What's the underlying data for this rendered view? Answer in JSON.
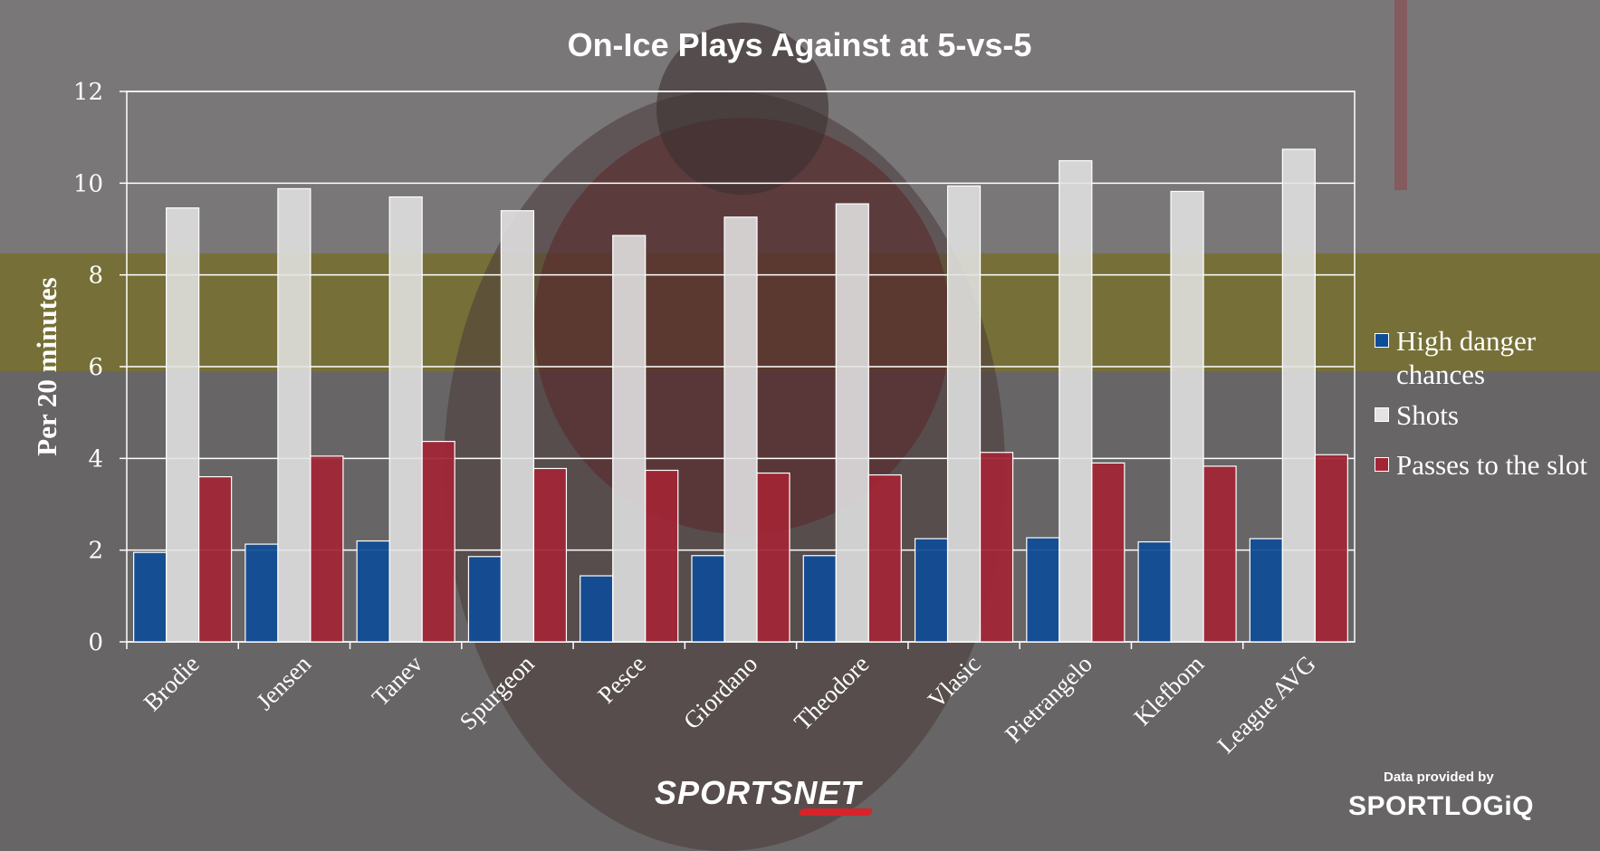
{
  "chart_data": {
    "type": "bar",
    "title": "On-Ice Plays Against at 5-vs-5",
    "ylabel": "Per 20 minutes",
    "xlabel": "",
    "ylim": [
      0,
      12
    ],
    "yticks": [
      0,
      2,
      4,
      6,
      8,
      10,
      12
    ],
    "grid": true,
    "legend_position": "right",
    "categories": [
      "Brodie",
      "Jensen",
      "Tanev",
      "Spurgeon",
      "Pesce",
      "Giordano",
      "Theodore",
      "Vlasic",
      "Pietrangelo",
      "Klefbom",
      "League AVG"
    ],
    "series": [
      {
        "name": "High danger chances",
        "color": "#0f4c97",
        "values": [
          1.95,
          2.13,
          2.2,
          1.86,
          1.44,
          1.88,
          1.88,
          2.25,
          2.27,
          2.18,
          2.25
        ]
      },
      {
        "name": "Shots",
        "color": "#e3e3e3",
        "values": [
          9.46,
          9.88,
          9.7,
          9.4,
          8.86,
          9.26,
          9.55,
          9.94,
          10.49,
          9.82,
          10.74
        ]
      },
      {
        "name": "Passes to the slot",
        "color": "#a32535",
        "values": [
          3.6,
          4.05,
          4.37,
          3.78,
          3.74,
          3.68,
          3.64,
          4.13,
          3.9,
          3.83,
          4.08
        ]
      }
    ]
  },
  "branding": {
    "sportsnet": "SPORTSNET",
    "provided_by": "Data provided by",
    "sportlogiq": "SPORTLOGiQ"
  },
  "colors": {
    "background": "#6b6b6b",
    "grid": "#ffffff"
  },
  "icons": {
    "background_photo": "hockey-player-photo"
  }
}
